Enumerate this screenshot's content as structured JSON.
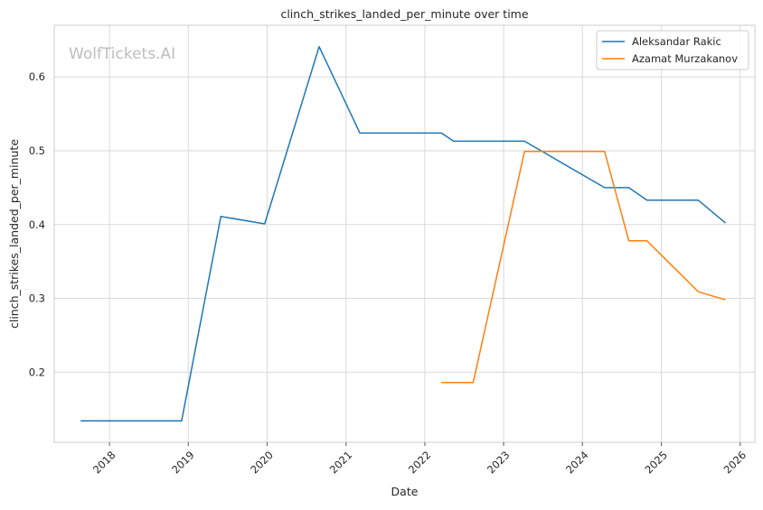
{
  "chart_data": {
    "type": "line",
    "title": "clinch_strikes_landed_per_minute over time",
    "xlabel": "Date",
    "ylabel": "clinch_strikes_landed_per_minute",
    "watermark": "WolfTickets.AI",
    "xlim": [
      "2017-04-20",
      "2026-03-10"
    ],
    "ylim": [
      0.105,
      0.67
    ],
    "x_ticks": [
      "2018",
      "2019",
      "2020",
      "2021",
      "2022",
      "2023",
      "2024",
      "2025",
      "2026"
    ],
    "y_ticks": [
      "0.2",
      "0.3",
      "0.4",
      "0.5",
      "0.6"
    ],
    "grid": true,
    "legend_position": "top-right",
    "series": [
      {
        "name": "Aleksandar Rakic",
        "color": "#1f77b4",
        "points": [
          {
            "x": "2017-08-20",
            "y": 0.134
          },
          {
            "x": "2018-12-01",
            "y": 0.134
          },
          {
            "x": "2019-06-01",
            "y": 0.411
          },
          {
            "x": "2019-12-21",
            "y": 0.401
          },
          {
            "x": "2020-08-29",
            "y": 0.641
          },
          {
            "x": "2021-03-06",
            "y": 0.524
          },
          {
            "x": "2022-03-19",
            "y": 0.524
          },
          {
            "x": "2022-05-14",
            "y": 0.513
          },
          {
            "x": "2023-04-08",
            "y": 0.513
          },
          {
            "x": "2024-04-13",
            "y": 0.45
          },
          {
            "x": "2024-08-03",
            "y": 0.45
          },
          {
            "x": "2024-10-26",
            "y": 0.433
          },
          {
            "x": "2025-06-21",
            "y": 0.433
          },
          {
            "x": "2025-10-25",
            "y": 0.402
          }
        ]
      },
      {
        "name": "Azamat Murzakanov",
        "color": "#ff7f0e",
        "points": [
          {
            "x": "2022-03-19",
            "y": 0.186
          },
          {
            "x": "2022-08-13",
            "y": 0.186
          },
          {
            "x": "2023-04-08",
            "y": 0.499
          },
          {
            "x": "2024-04-13",
            "y": 0.499
          },
          {
            "x": "2024-08-03",
            "y": 0.378
          },
          {
            "x": "2024-10-26",
            "y": 0.378
          },
          {
            "x": "2025-06-21",
            "y": 0.309
          },
          {
            "x": "2025-10-25",
            "y": 0.298
          }
        ]
      }
    ]
  }
}
